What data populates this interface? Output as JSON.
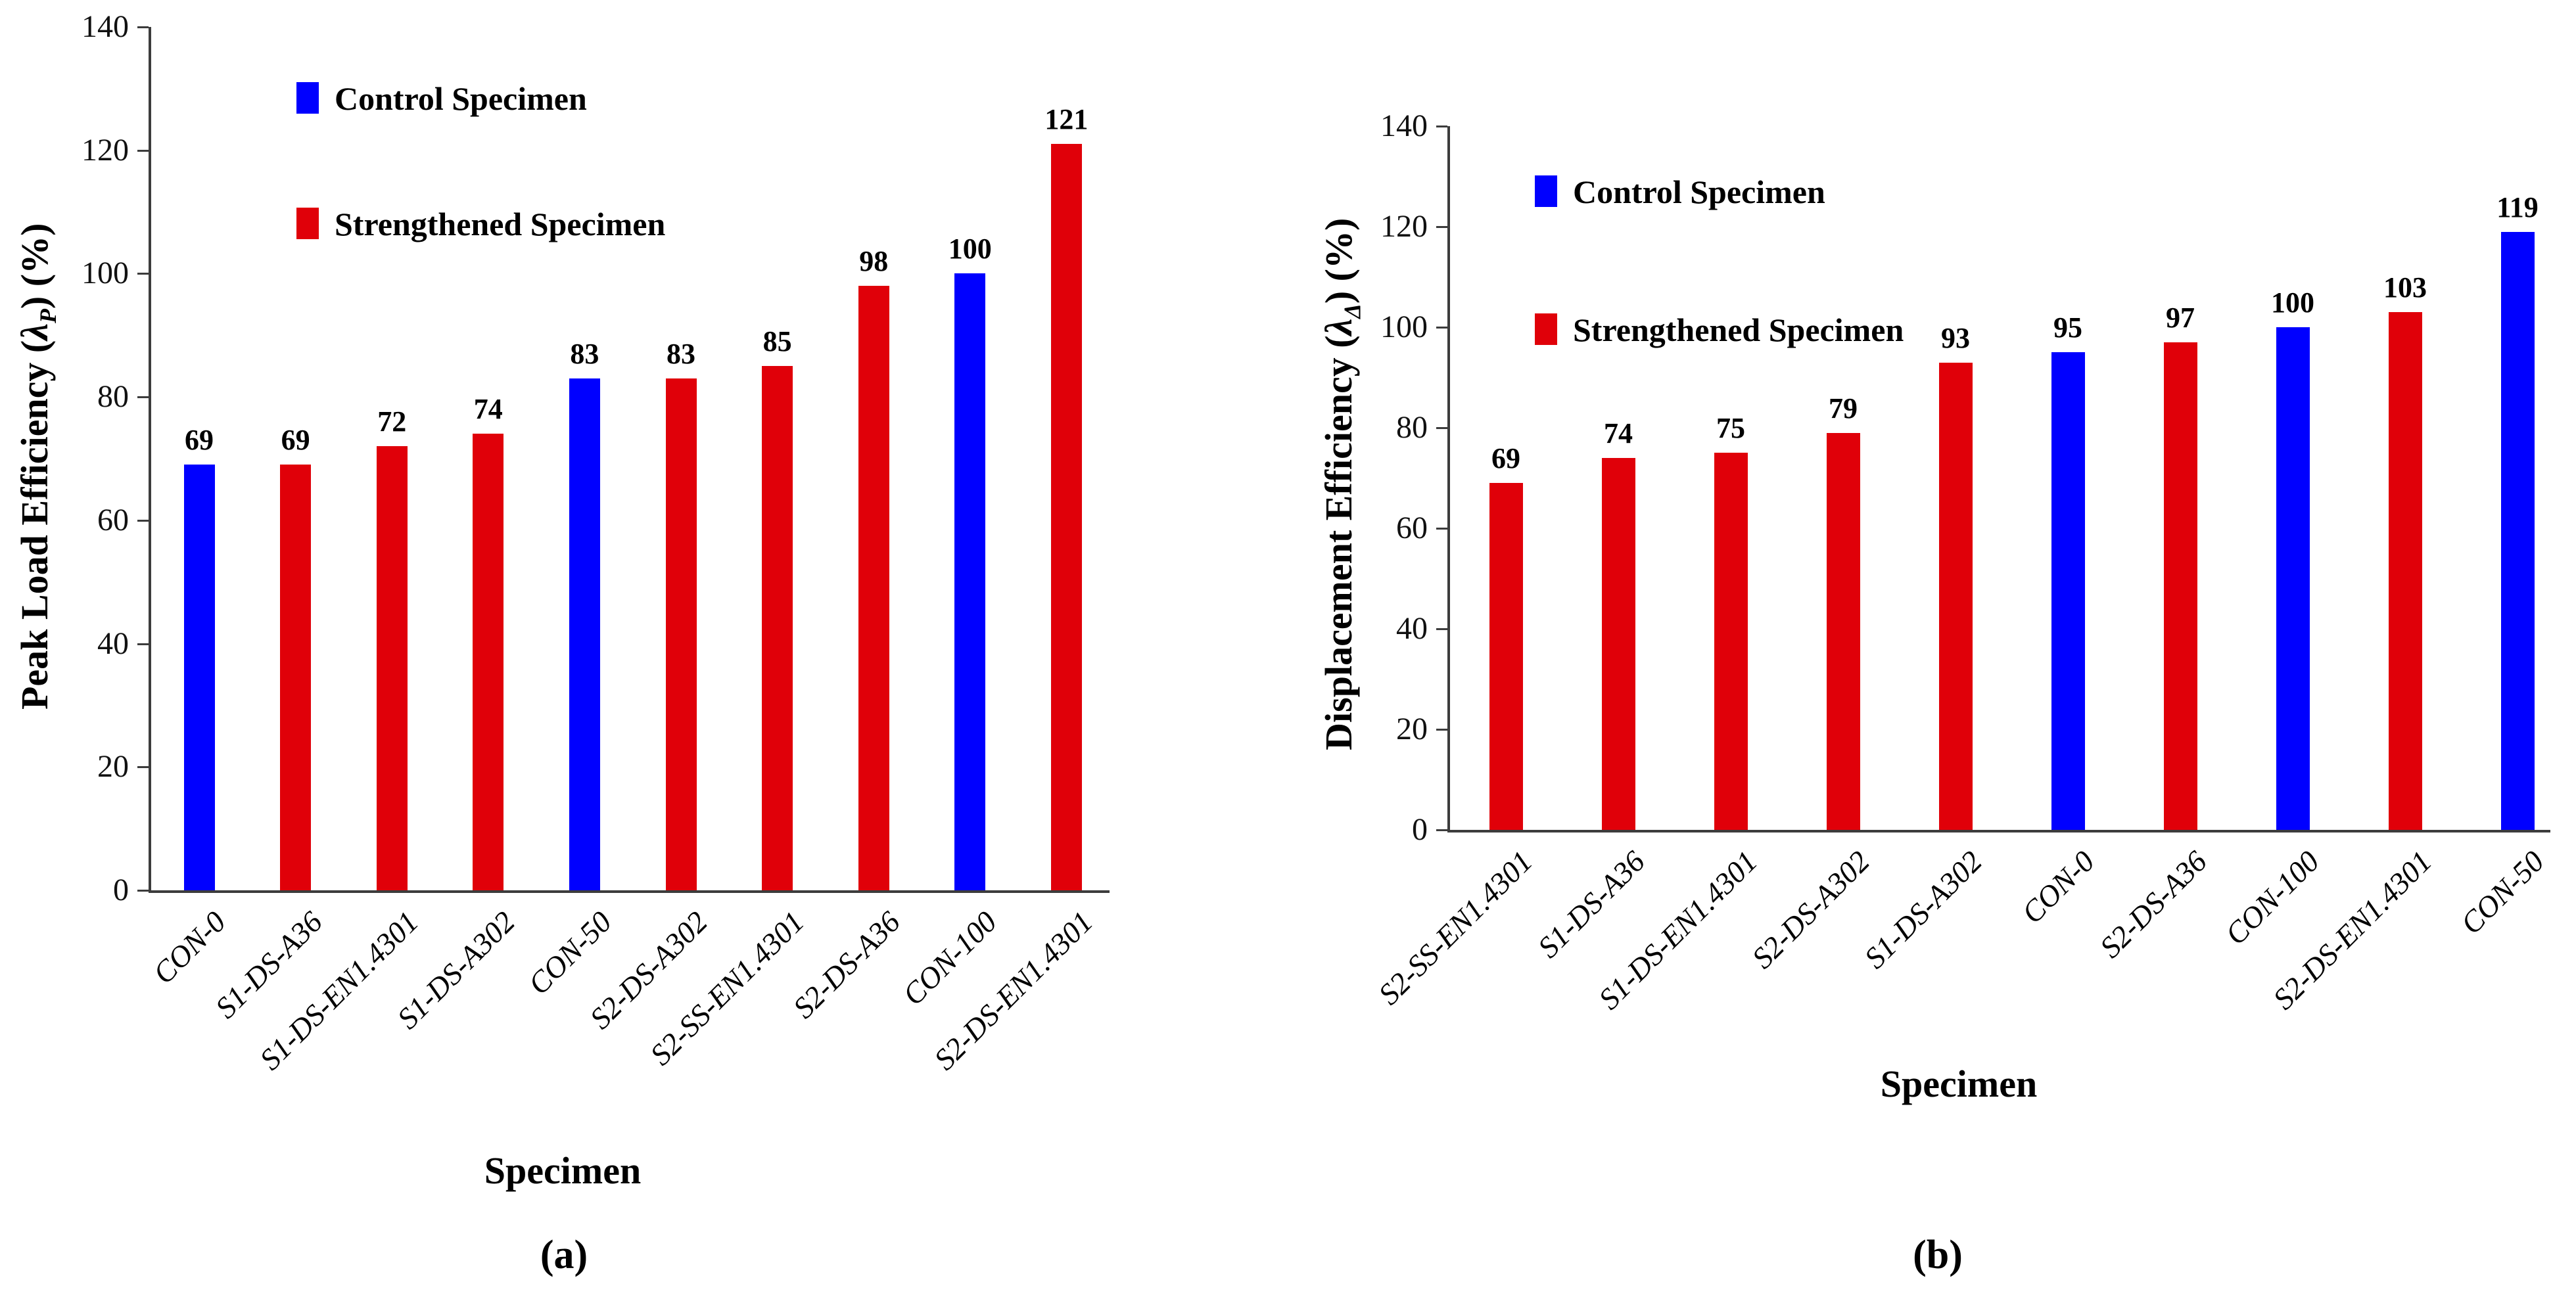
{
  "figure": {
    "background": "#ffffff"
  },
  "colors": {
    "control": "#0000ff",
    "strengthened": "#e00009",
    "axis": "#3c3c3c",
    "text": "#000000"
  },
  "chart_data": [
    {
      "type": "bar",
      "caption": "(a)",
      "x_label": "Specimen",
      "y_title": {
        "prefix": "Peak Load Efficiency (",
        "symbol": "λ",
        "subscript": "P",
        "suffix": ") (%)"
      },
      "ylim": [
        0,
        140
      ],
      "y_ticks": [
        0,
        20,
        40,
        60,
        80,
        100,
        120,
        140
      ],
      "grid": false,
      "legend_position": "upper-left",
      "legend": [
        {
          "label": "Control Specimen",
          "series": "control"
        },
        {
          "label": "Strengthened Specimen",
          "series": "strengthened"
        }
      ],
      "categories": [
        "CON-0",
        "S1-DS-A36",
        "S1-DS-EN1.4301",
        "S1-DS-A302",
        "CON-50",
        "S2-DS-A302",
        "S2-SS-EN1.4301",
        "S2-DS-A36",
        "CON-100",
        "S2-DS-EN1.4301"
      ],
      "values": [
        69,
        69,
        72,
        74,
        83,
        83,
        85,
        98,
        100,
        121
      ],
      "series_by_bar": [
        "control",
        "strengthened",
        "strengthened",
        "strengthened",
        "control",
        "strengthened",
        "strengthened",
        "strengthened",
        "control",
        "strengthened"
      ]
    },
    {
      "type": "bar",
      "caption": "(b)",
      "x_label": "Specimen",
      "y_title": {
        "prefix": "Displacement Efficiency (",
        "symbol": "λ",
        "subscript": "Δ",
        "suffix": ") (%)"
      },
      "ylim": [
        0,
        140
      ],
      "y_ticks": [
        0,
        20,
        40,
        60,
        80,
        100,
        120,
        140
      ],
      "grid": false,
      "legend_position": "upper-left",
      "legend": [
        {
          "label": "Control Specimen",
          "series": "control"
        },
        {
          "label": "Strengthened Specimen",
          "series": "strengthened"
        }
      ],
      "categories": [
        "S2-SS-EN1.4301",
        "S1-DS-A36",
        "S1-DS-EN1.4301",
        "S2-DS-A302",
        "S1-DS-A302",
        "CON-0",
        "S2-DS-A36",
        "CON-100",
        "S2-DS-EN1.4301",
        "CON-50"
      ],
      "values": [
        69,
        74,
        75,
        79,
        93,
        95,
        97,
        100,
        103,
        119
      ],
      "series_by_bar": [
        "strengthened",
        "strengthened",
        "strengthened",
        "strengthened",
        "strengthened",
        "control",
        "strengthened",
        "control",
        "strengthened",
        "control"
      ]
    }
  ]
}
